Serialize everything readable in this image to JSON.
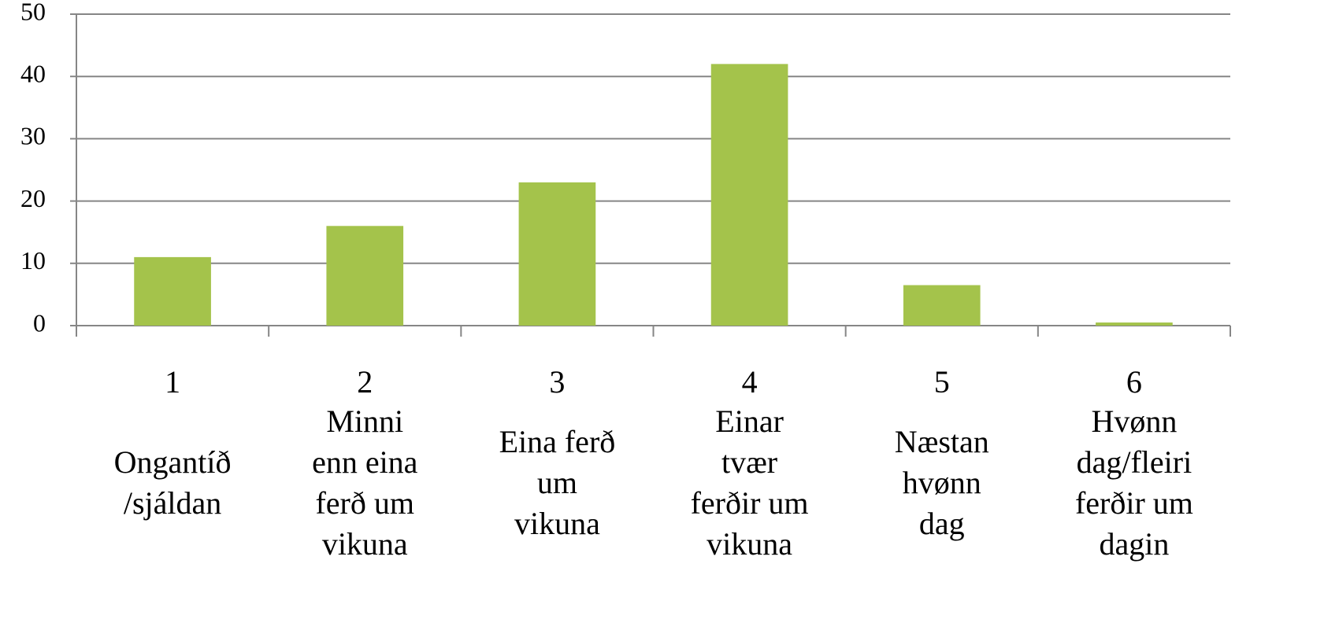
{
  "chart_data": {
    "type": "bar",
    "categories": [
      [
        "1",
        "Ongantíð",
        "/sjáldan"
      ],
      [
        "2",
        "Minni",
        "enn eina",
        "ferð um",
        "vikuna"
      ],
      [
        "3",
        "Eina ferð",
        "um",
        "vikuna"
      ],
      [
        "4",
        "Einar",
        "tvær",
        "ferðir um",
        "vikuna"
      ],
      [
        "5",
        "Næstan",
        "hvønn",
        "dag"
      ],
      [
        "6",
        "Hvønn",
        "dag/fleiri",
        "ferðir um",
        "dagin"
      ]
    ],
    "values": [
      11,
      16,
      23,
      42,
      6.5,
      0.5
    ],
    "color": "#a4c34b",
    "ylim": [
      0,
      50
    ],
    "yticks": [
      0,
      10,
      20,
      30,
      40,
      50
    ],
    "grid": true
  }
}
